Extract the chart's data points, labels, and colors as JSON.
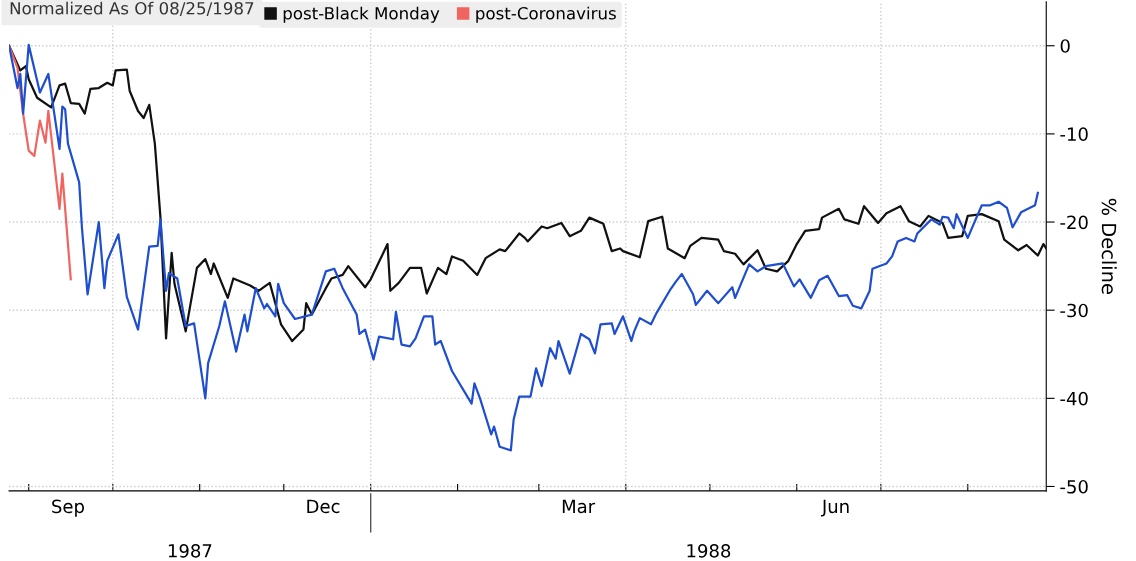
{
  "chart_data": {
    "type": "line",
    "legend_title": "Normalized As Of 08/25/1987",
    "ylabel": "% Decline",
    "annotations": [
      "1987",
      "1988"
    ],
    "xlim": [
      "1987-08-25",
      "1988-08-29"
    ],
    "xticks": [
      {
        "value": "1987-09-01",
        "label": null
      },
      {
        "value": "1987-09-15",
        "label": "Sep"
      },
      {
        "value": "1987-10-01",
        "label": null
      },
      {
        "value": "1987-11-01",
        "label": null
      },
      {
        "value": "1987-12-01",
        "label": null
      },
      {
        "value": "1987-12-15",
        "label": "Dec"
      },
      {
        "value": "1988-01-01",
        "label": null
      },
      {
        "value": "1988-02-01",
        "label": null
      },
      {
        "value": "1988-03-01",
        "label": null
      },
      {
        "value": "1988-03-15",
        "label": "Mar"
      },
      {
        "value": "1988-04-01",
        "label": null
      },
      {
        "value": "1988-05-01",
        "label": null
      },
      {
        "value": "1988-06-01",
        "label": null
      },
      {
        "value": "1988-06-15",
        "label": "Jun"
      },
      {
        "value": "1988-07-01",
        "label": null
      },
      {
        "value": "1988-08-01",
        "label": null
      }
    ],
    "ylim": [
      -50.5,
      5
    ],
    "yticks": [
      0,
      -10,
      -20,
      -30,
      -40,
      -50
    ],
    "grid": "y",
    "ref_lines": [
      {
        "axis": "x",
        "value": "1987-10-01",
        "label": null,
        "color": "#cccccc",
        "line_style": "dotted"
      },
      {
        "axis": "x",
        "value": "1988-01-01",
        "label": null,
        "color": "#cccccc",
        "line_style": "dotted"
      },
      {
        "axis": "x",
        "value": "1988-04-01",
        "label": null,
        "color": "#cccccc",
        "line_style": "dotted"
      },
      {
        "axis": "x",
        "value": "1988-07-01",
        "label": null,
        "color": "#cccccc",
        "line_style": "dotted"
      }
    ],
    "legend": "top left",
    "marker": "none",
    "line_style": "solid",
    "series": [
      {
        "name": "post-Black Monday",
        "color": "#111111",
        "x": [
          "1987-08-25",
          "1987-08-29",
          "1987-08-31",
          "1987-09-01",
          "1987-09-04",
          "1987-09-09",
          "1987-09-12",
          "1987-09-14",
          "1987-09-16",
          "1987-09-19",
          "1987-09-21",
          "1987-09-23",
          "1987-09-26",
          "1987-09-29",
          "1987-10-01",
          "1987-10-02",
          "1987-10-06",
          "1987-10-07",
          "1987-10-10",
          "1987-10-12",
          "1987-10-14",
          "1987-10-16",
          "1987-10-18",
          "1987-10-20",
          "1987-10-22",
          "1987-10-23",
          "1987-10-27",
          "1987-10-31",
          "1987-11-03",
          "1987-11-05",
          "1987-11-06",
          "1987-11-11",
          "1987-11-13",
          "1987-11-19",
          "1987-11-22",
          "1987-11-26",
          "1987-11-30",
          "1987-12-04",
          "1987-12-08",
          "1987-12-09",
          "1987-12-11",
          "1987-12-16",
          "1987-12-18",
          "1987-12-22",
          "1987-12-24",
          "1987-12-30",
          "1988-01-01",
          "1988-01-07",
          "1988-01-08",
          "1988-01-11",
          "1988-01-15",
          "1988-01-19",
          "1988-01-21",
          "1988-01-25",
          "1988-01-28",
          "1988-01-30",
          "1988-02-03",
          "1988-02-08",
          "1988-02-11",
          "1988-02-16",
          "1988-02-18",
          "1988-02-23",
          "1988-02-25",
          "1988-02-26",
          "1988-03-02",
          "1988-03-04",
          "1988-03-09",
          "1988-03-12",
          "1988-03-16",
          "1988-03-19",
          "1988-03-24",
          "1988-03-27",
          "1988-03-30",
          "1988-03-31",
          "1988-04-06",
          "1988-04-08",
          "1988-04-09",
          "1988-04-14",
          "1988-04-16",
          "1988-04-22",
          "1988-04-24",
          "1988-04-28",
          "1988-05-04",
          "1988-05-06",
          "1988-05-10",
          "1988-05-13",
          "1988-05-18",
          "1988-05-21",
          "1988-05-25",
          "1988-05-29",
          "1988-06-01",
          "1988-06-04",
          "1988-06-09",
          "1988-06-10",
          "1988-06-16",
          "1988-06-18",
          "1988-06-23",
          "1988-06-25",
          "1988-06-30",
          "1988-07-03",
          "1988-07-08",
          "1988-07-11",
          "1988-07-15",
          "1988-07-18",
          "1988-07-23",
          "1988-07-25",
          "1988-07-30",
          "1988-08-01",
          "1988-08-06",
          "1988-08-12",
          "1988-08-14",
          "1988-08-19",
          "1988-08-22",
          "1988-08-26",
          "1988-08-28",
          "1988-08-29"
        ],
        "values": [
          0,
          -2.8,
          -2.3,
          -3.8,
          -5.9,
          -7.0,
          -4.5,
          -4.3,
          -6.5,
          -6.6,
          -7.7,
          -4.9,
          -4.8,
          -4.2,
          -4.5,
          -2.8,
          -2.7,
          -5.1,
          -7.4,
          -8.2,
          -6.7,
          -11.1,
          -19.5,
          -33.2,
          -23.5,
          -27.0,
          -32.4,
          -25.2,
          -24.2,
          -25.9,
          -24.7,
          -28.6,
          -26.4,
          -27.2,
          -27.8,
          -26.9,
          -31.6,
          -33.5,
          -32.2,
          -29.2,
          -30.5,
          -27.5,
          -26.4,
          -26.0,
          -25.0,
          -27.4,
          -26.5,
          -22.5,
          -27.8,
          -26.9,
          -25.2,
          -25.2,
          -28.1,
          -25.2,
          -25.9,
          -23.9,
          -24.4,
          -26.0,
          -24.1,
          -23.1,
          -23.3,
          -21.3,
          -21.8,
          -22.2,
          -20.5,
          -20.7,
          -20.1,
          -21.6,
          -21.0,
          -19.5,
          -20.2,
          -23.3,
          -23.0,
          -23.3,
          -24.0,
          -21.3,
          -19.9,
          -19.4,
          -23.0,
          -24.1,
          -22.7,
          -21.8,
          -22.0,
          -23.3,
          -23.6,
          -24.8,
          -23.2,
          -25.3,
          -25.6,
          -24.4,
          -22.5,
          -21.0,
          -20.8,
          -19.5,
          -18.5,
          -19.7,
          -20.2,
          -18.2,
          -20.1,
          -19.0,
          -18.2,
          -19.9,
          -20.5,
          -19.3,
          -20.1,
          -21.8,
          -21.6,
          -19.3,
          -19.1,
          -19.9,
          -22.0,
          -23.2,
          -22.6,
          -23.8,
          -22.5,
          -23.0
        ]
      },
      {
        "name": "post-Coronavirus",
        "color": "#f06560",
        "x": [
          "1987-08-25",
          "1987-08-28",
          "1987-08-30",
          "1987-09-01",
          "1987-09-03",
          "1987-09-05",
          "1987-09-07",
          "1987-09-08",
          "1987-09-12",
          "1987-09-13",
          "1987-09-16"
        ],
        "values": [
          0,
          -2.5,
          -7.7,
          -11.9,
          -12.5,
          -8.5,
          -11.0,
          -7.4,
          -18.5,
          -14.5,
          -26.5
        ]
      },
      {
        "color": "#1f4fd0",
        "x": [
          "1987-08-25",
          "1987-08-28",
          "1987-08-29",
          "1987-08-30",
          "1987-09-01",
          "1987-09-05",
          "1987-09-08",
          "1987-09-12",
          "1987-09-13",
          "1987-09-14",
          "1987-09-15",
          "1987-09-19",
          "1987-09-20",
          "1987-09-22",
          "1987-09-26",
          "1987-09-28",
          "1987-09-29",
          "1987-10-03",
          "1987-10-06",
          "1987-10-10",
          "1987-10-14",
          "1987-10-17",
          "1987-10-18",
          "1987-10-20",
          "1987-10-21",
          "1987-10-24",
          "1987-10-27",
          "1987-10-30",
          "1987-11-03",
          "1987-11-04",
          "1987-11-08",
          "1987-11-10",
          "1987-11-14",
          "1987-11-17",
          "1987-11-18",
          "1987-11-21",
          "1987-11-24",
          "1987-11-25",
          "1987-11-28",
          "1987-11-29",
          "1987-12-01",
          "1987-12-05",
          "1987-12-11",
          "1987-12-16",
          "1987-12-19",
          "1987-12-22",
          "1987-12-27",
          "1987-12-28",
          "1987-12-30",
          "1988-01-02",
          "1988-01-04",
          "1988-01-09",
          "1988-01-10",
          "1988-01-12",
          "1988-01-15",
          "1988-01-17",
          "1988-01-20",
          "1988-01-23",
          "1988-01-24",
          "1988-01-26",
          "1988-01-30",
          "1988-02-06",
          "1988-02-07",
          "1988-02-09",
          "1988-02-13",
          "1988-02-14",
          "1988-02-16",
          "1988-02-20",
          "1988-02-21",
          "1988-02-23",
          "1988-02-27",
          "1988-02-29",
          "1988-03-02",
          "1988-03-05",
          "1988-03-07",
          "1988-03-08",
          "1988-03-12",
          "1988-03-16",
          "1988-03-19",
          "1988-03-21",
          "1988-03-23",
          "1988-03-27",
          "1988-03-28",
          "1988-03-31",
          "1988-04-03",
          "1988-04-04",
          "1988-04-06",
          "1988-04-10",
          "1988-04-12",
          "1988-04-17",
          "1988-04-19",
          "1988-04-21",
          "1988-04-25",
          "1988-04-26",
          "1988-04-30",
          "1988-05-04",
          "1988-05-09",
          "1988-05-10",
          "1988-05-15",
          "1988-05-18",
          "1988-05-21",
          "1988-05-27",
          "1988-05-31",
          "1988-06-02",
          "1988-06-06",
          "1988-06-09",
          "1988-06-12",
          "1988-06-16",
          "1988-06-19",
          "1988-06-21",
          "1988-06-24",
          "1988-06-27",
          "1988-06-28",
          "1988-07-03",
          "1988-07-05",
          "1988-07-07",
          "1988-07-10",
          "1988-07-13",
          "1988-07-14",
          "1988-07-19",
          "1988-07-22",
          "1988-07-23",
          "1988-07-25",
          "1988-07-27",
          "1988-07-28",
          "1988-08-01",
          "1988-08-06",
          "1988-08-09",
          "1988-08-12",
          "1988-08-15",
          "1988-08-17",
          "1988-08-20",
          "1988-08-25",
          "1988-08-26"
        ],
        "values": [
          0,
          -4.8,
          -3.2,
          -7.7,
          0.1,
          -5.3,
          -3.2,
          -11.7,
          -6.9,
          -7.2,
          -11.1,
          -15.5,
          -20.7,
          -28.2,
          -20.0,
          -27.5,
          -24.4,
          -21.4,
          -28.5,
          -32.2,
          -22.8,
          -22.7,
          -19.7,
          -27.8,
          -25.8,
          -26.4,
          -31.8,
          -31.5,
          -40.0,
          -36.0,
          -31.8,
          -29.0,
          -34.7,
          -30.5,
          -32.4,
          -27.5,
          -29.8,
          -29.3,
          -30.7,
          -27.0,
          -29.2,
          -31.0,
          -30.5,
          -25.6,
          -25.3,
          -27.5,
          -30.5,
          -32.7,
          -32.2,
          -35.6,
          -33.0,
          -33.3,
          -30.2,
          -33.9,
          -34.1,
          -33.2,
          -30.7,
          -30.7,
          -33.9,
          -33.5,
          -36.9,
          -40.6,
          -38.3,
          -40.0,
          -44.1,
          -43.2,
          -45.5,
          -45.9,
          -42.4,
          -39.8,
          -39.8,
          -36.6,
          -38.6,
          -34.3,
          -35.5,
          -33.5,
          -37.2,
          -32.7,
          -33.3,
          -34.9,
          -31.6,
          -31.5,
          -32.7,
          -30.7,
          -33.5,
          -32.4,
          -30.9,
          -31.6,
          -30.3,
          -27.6,
          -26.7,
          -25.9,
          -28.2,
          -29.4,
          -27.8,
          -29.2,
          -27.4,
          -28.6,
          -24.8,
          -25.6,
          -25.0,
          -24.7,
          -27.3,
          -26.5,
          -28.6,
          -26.6,
          -26.1,
          -28.4,
          -28.3,
          -29.5,
          -29.8,
          -27.8,
          -25.3,
          -24.7,
          -23.9,
          -22.2,
          -21.8,
          -22.2,
          -21.3,
          -19.7,
          -20.3,
          -19.4,
          -19.5,
          -20.7,
          -19.1,
          -21.8,
          -18.1,
          -18.1,
          -17.7,
          -18.4,
          -20.6,
          -18.9,
          -18.1,
          -16.7
        ]
      }
    ]
  }
}
